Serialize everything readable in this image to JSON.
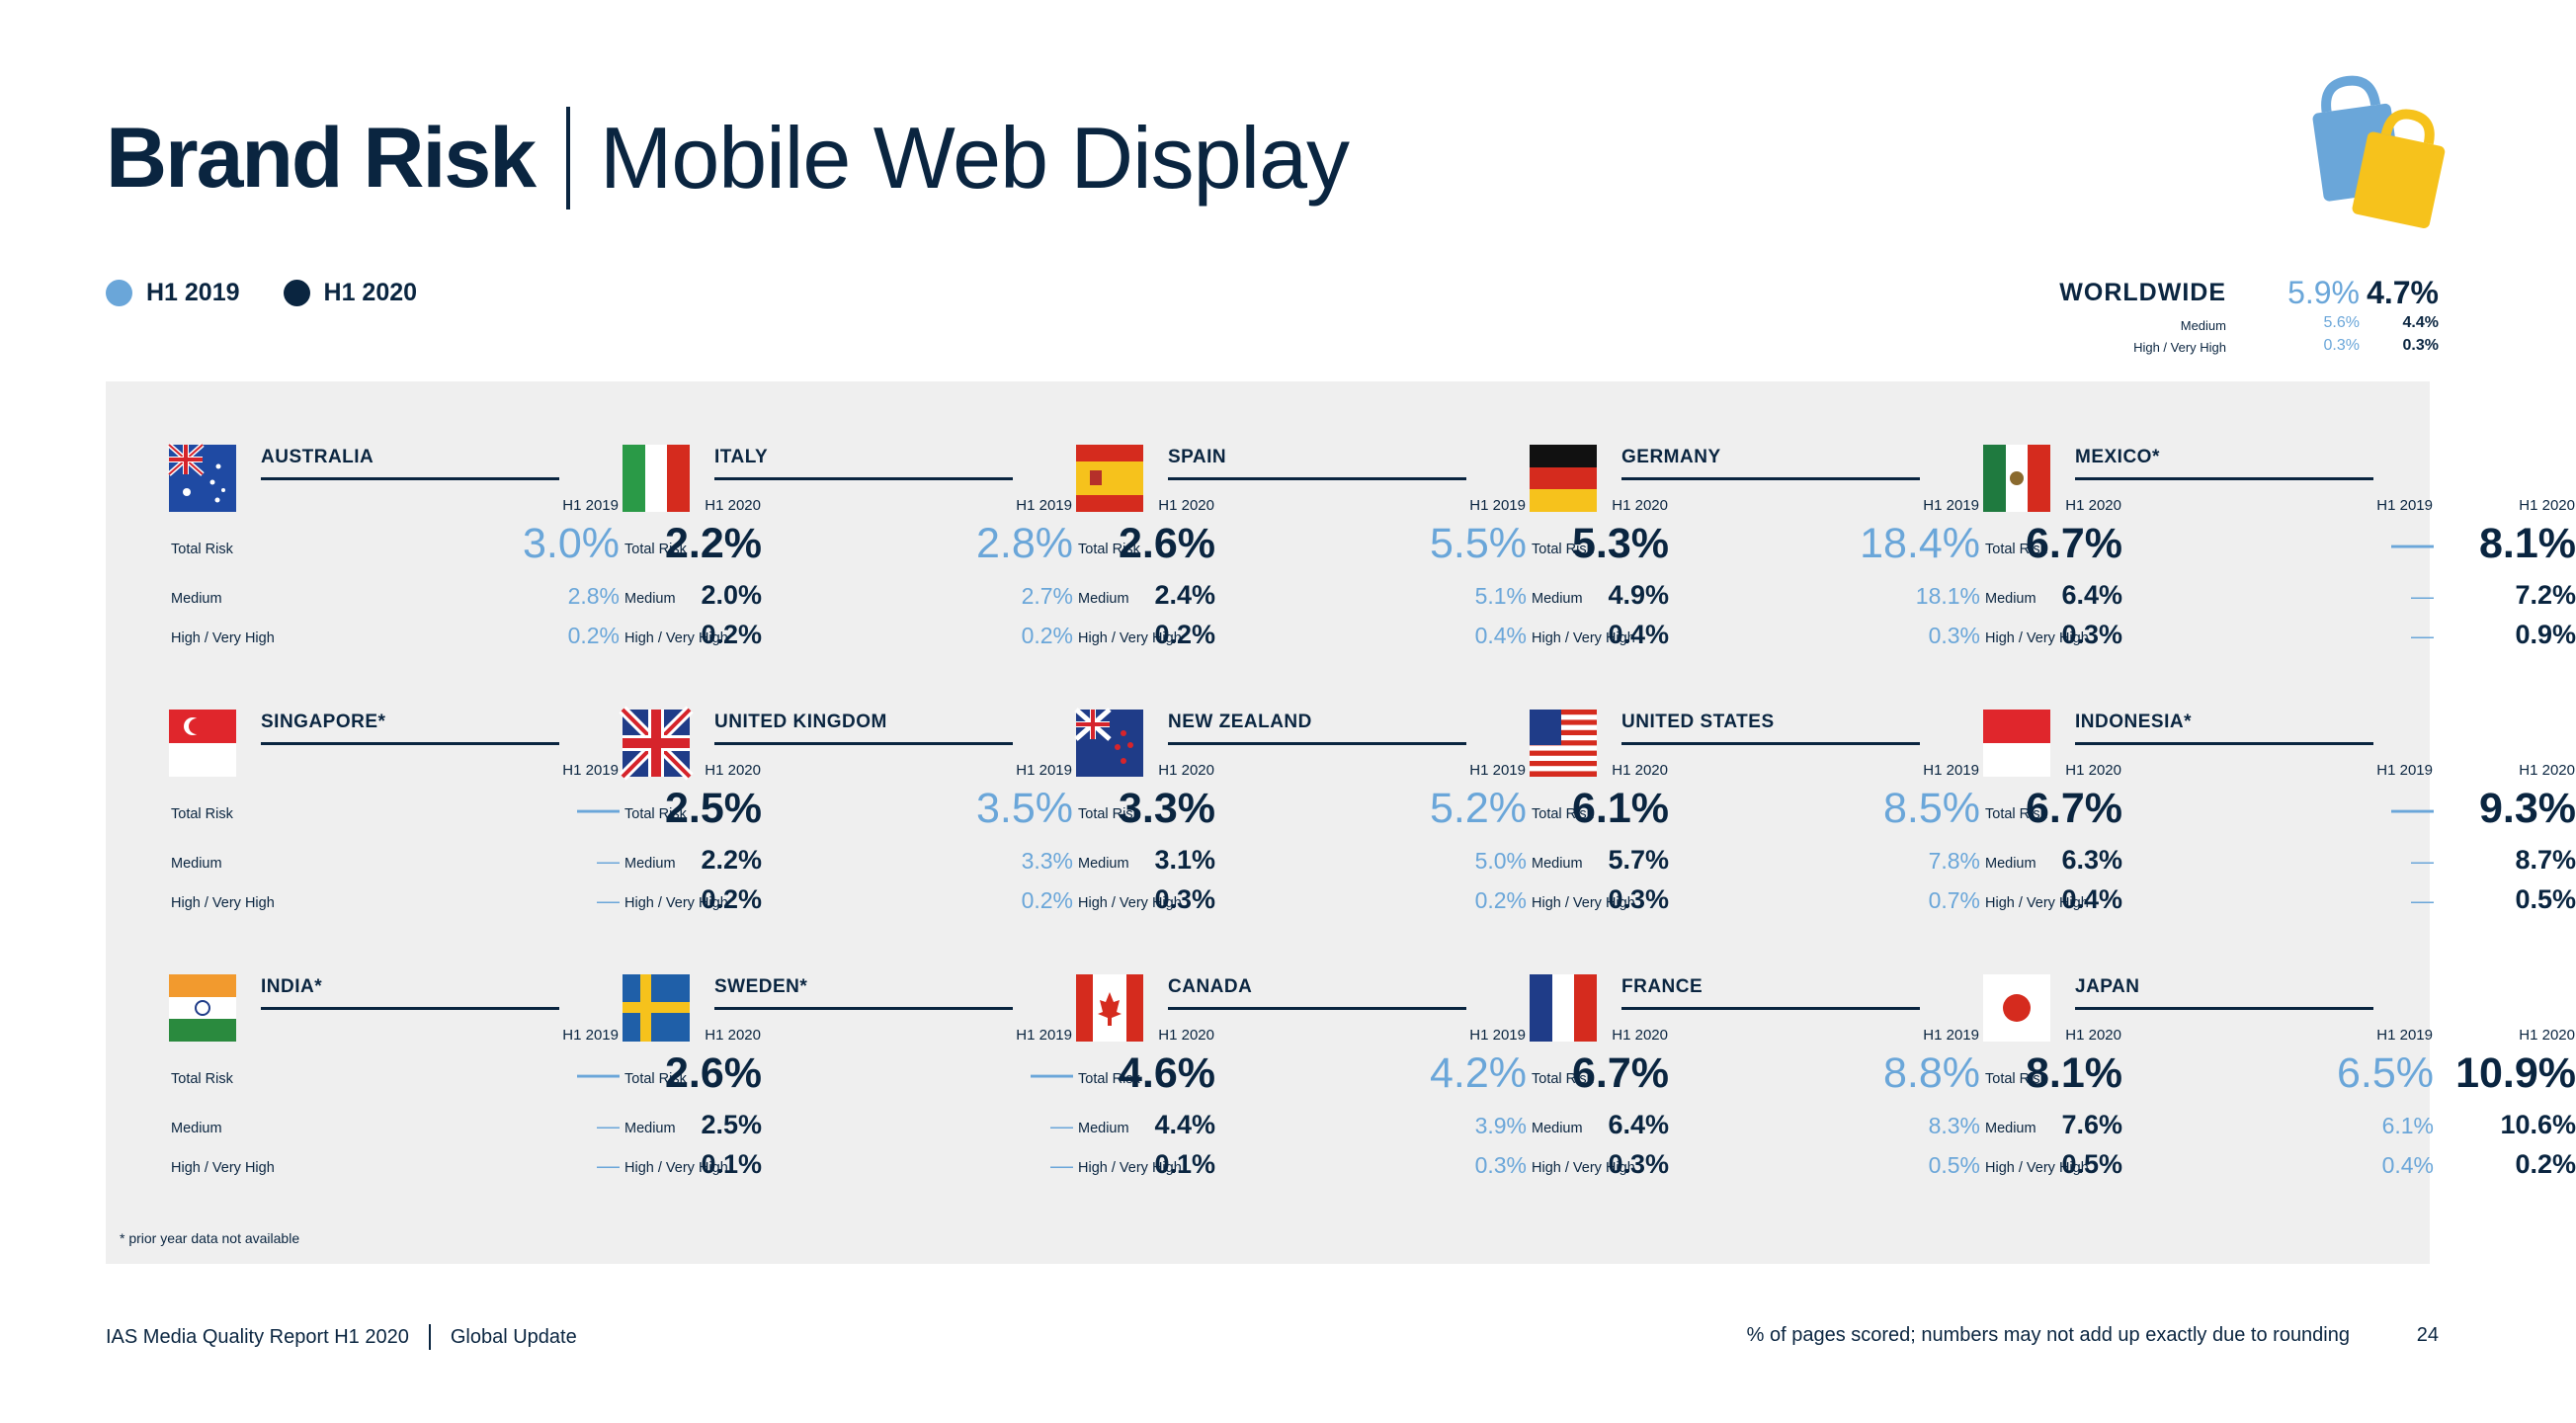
{
  "title": {
    "bold": "Brand Risk",
    "light": "Mobile Web Display"
  },
  "legend": [
    {
      "label": "H1 2019",
      "color": "#6aa6d9"
    },
    {
      "label": "H1 2020",
      "color": "#0a2540"
    }
  ],
  "worldwide": {
    "label": "WORLDWIDE",
    "total_2019": "5.9%",
    "total_2020": "4.7%",
    "medium_label": "Medium",
    "medium_2019": "5.6%",
    "medium_2020": "4.4%",
    "high_label": "High / Very High",
    "high_2019": "0.3%",
    "high_2020": "0.3%"
  },
  "headers": {
    "y2019": "H1 2019",
    "y2020": "H1 2020"
  },
  "row_labels": {
    "total": "Total Risk",
    "medium": "Medium",
    "high": "High / Very High"
  },
  "countries": [
    {
      "name": "AUSTRALIA",
      "flag": "australia-flag-icon",
      "total_2019": "3.0%",
      "total_2020": "2.2%",
      "medium_2019": "2.8%",
      "medium_2020": "2.0%",
      "high_2019": "0.2%",
      "high_2020": "0.2%"
    },
    {
      "name": "ITALY",
      "flag": "italy-flag-icon",
      "total_2019": "2.8%",
      "total_2020": "2.6%",
      "medium_2019": "2.7%",
      "medium_2020": "2.4%",
      "high_2019": "0.2%",
      "high_2020": "0.2%"
    },
    {
      "name": "SPAIN",
      "flag": "spain-flag-icon",
      "total_2019": "5.5%",
      "total_2020": "5.3%",
      "medium_2019": "5.1%",
      "medium_2020": "4.9%",
      "high_2019": "0.4%",
      "high_2020": "0.4%"
    },
    {
      "name": "GERMANY",
      "flag": "germany-flag-icon",
      "total_2019": "18.4%",
      "total_2020": "6.7%",
      "medium_2019": "18.1%",
      "medium_2020": "6.4%",
      "high_2019": "0.3%",
      "high_2020": "0.3%"
    },
    {
      "name": "MEXICO*",
      "flag": "mexico-flag-icon",
      "total_2019": "—",
      "total_2020": "8.1%",
      "medium_2019": "—",
      "medium_2020": "7.2%",
      "high_2019": "—",
      "high_2020": "0.9%"
    },
    {
      "name": "SINGAPORE*",
      "flag": "singapore-flag-icon",
      "total_2019": "—",
      "total_2020": "2.5%",
      "medium_2019": "—",
      "medium_2020": "2.2%",
      "high_2019": "—",
      "high_2020": "0.2%"
    },
    {
      "name": "UNITED KINGDOM",
      "flag": "uk-flag-icon",
      "total_2019": "3.5%",
      "total_2020": "3.3%",
      "medium_2019": "3.3%",
      "medium_2020": "3.1%",
      "high_2019": "0.2%",
      "high_2020": "0.3%"
    },
    {
      "name": "NEW ZEALAND",
      "flag": "new-zealand-flag-icon",
      "total_2019": "5.2%",
      "total_2020": "6.1%",
      "medium_2019": "5.0%",
      "medium_2020": "5.7%",
      "high_2019": "0.2%",
      "high_2020": "0.3%"
    },
    {
      "name": "UNITED STATES",
      "flag": "usa-flag-icon",
      "total_2019": "8.5%",
      "total_2020": "6.7%",
      "medium_2019": "7.8%",
      "medium_2020": "6.3%",
      "high_2019": "0.7%",
      "high_2020": "0.4%"
    },
    {
      "name": "INDONESIA*",
      "flag": "indonesia-flag-icon",
      "total_2019": "—",
      "total_2020": "9.3%",
      "medium_2019": "—",
      "medium_2020": "8.7%",
      "high_2019": "—",
      "high_2020": "0.5%"
    },
    {
      "name": "INDIA*",
      "flag": "india-flag-icon",
      "total_2019": "—",
      "total_2020": "2.6%",
      "medium_2019": "—",
      "medium_2020": "2.5%",
      "high_2019": "—",
      "high_2020": "0.1%"
    },
    {
      "name": "SWEDEN*",
      "flag": "sweden-flag-icon",
      "total_2019": "—",
      "total_2020": "4.6%",
      "medium_2019": "—",
      "medium_2020": "4.4%",
      "high_2019": "—",
      "high_2020": "0.1%"
    },
    {
      "name": "CANADA",
      "flag": "canada-flag-icon",
      "total_2019": "4.2%",
      "total_2020": "6.7%",
      "medium_2019": "3.9%",
      "medium_2020": "6.4%",
      "high_2019": "0.3%",
      "high_2020": "0.3%"
    },
    {
      "name": "FRANCE",
      "flag": "france-flag-icon",
      "total_2019": "8.8%",
      "total_2020": "8.1%",
      "medium_2019": "8.3%",
      "medium_2020": "7.6%",
      "high_2019": "0.5%",
      "high_2020": "0.5%"
    },
    {
      "name": "JAPAN",
      "flag": "japan-flag-icon",
      "total_2019": "6.5%",
      "total_2020": "10.9%",
      "medium_2019": "6.1%",
      "medium_2020": "10.6%",
      "high_2019": "0.4%",
      "high_2020": "0.2%"
    }
  ],
  "footnote": "* prior year data not available",
  "footer": {
    "report": "IAS Media Quality Report H1 2020",
    "section": "Global Update",
    "note": "% of pages scored; numbers may not add up exactly due to rounding",
    "page": "24"
  }
}
